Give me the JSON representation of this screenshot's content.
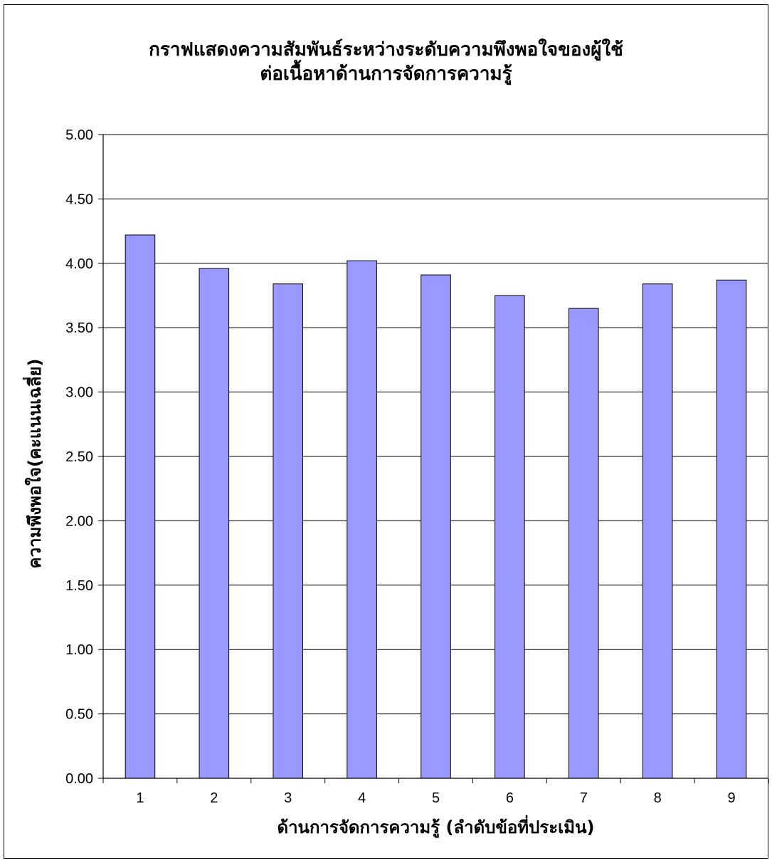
{
  "chart_data": {
    "type": "bar",
    "title_lines": [
      "กราฟแสดงความสัมพันธ์ระหว่างระดับความพึงพอใจของผู้ใช้",
      "ต่อเนื้อหาด้านการจัดการความรู้"
    ],
    "xlabel": "ด้านการจัดการความรู้ (ลำดับข้อที่ประเมิน)",
    "ylabel": "ความพึงพอใจ(คะแนนเฉลี่ย)",
    "categories": [
      "1",
      "2",
      "3",
      "4",
      "5",
      "6",
      "7",
      "8",
      "9"
    ],
    "values": [
      4.22,
      3.96,
      3.84,
      4.02,
      3.91,
      3.75,
      3.65,
      3.84,
      3.87
    ],
    "ylim": [
      0,
      5
    ],
    "ytick_step": 0.5,
    "ytick_labels": [
      "0.00",
      "0.50",
      "1.00",
      "1.50",
      "2.00",
      "2.50",
      "3.00",
      "3.50",
      "4.00",
      "4.50",
      "5.00"
    ],
    "grid": true,
    "legend": "none",
    "colors": {
      "bar_fill": "#9999ff",
      "bar_stroke": "#000000",
      "grid": "#000000"
    }
  }
}
